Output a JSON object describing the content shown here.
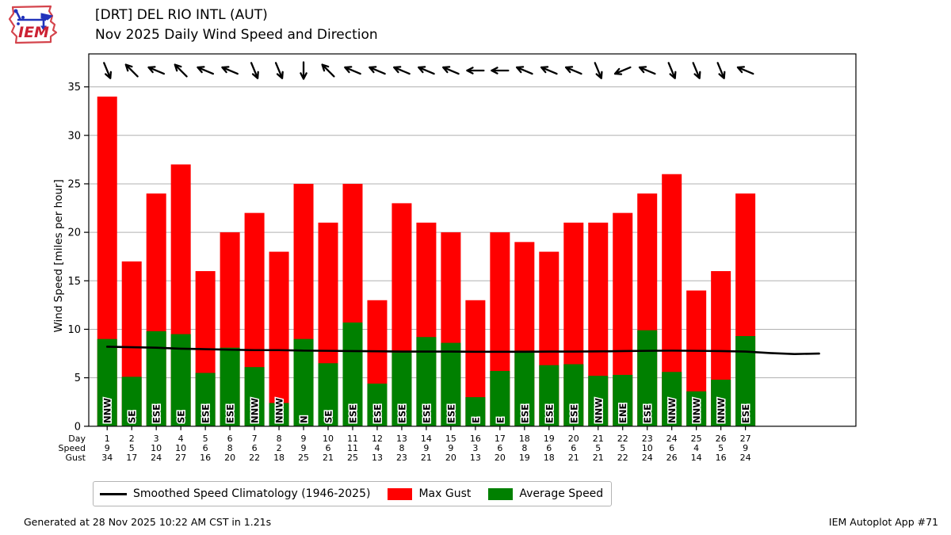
{
  "header": {
    "title": "[DRT] DEL RIO INTL (AUT)",
    "subtitle": "Nov 2025 Daily Wind Speed and Direction",
    "logo_text": "IEM"
  },
  "footer": {
    "generated": "Generated at 28 Nov 2025 10:22 AM CST in 1.21s",
    "app": "IEM Autoplot App #71"
  },
  "chart_data": {
    "type": "bar",
    "title": "[DRT] DEL RIO INTL (AUT)",
    "subtitle": "Nov 2025 Daily Wind Speed and Direction",
    "ylabel": "Wind Speed [miles per hour]",
    "ylim": [
      0,
      38.4
    ],
    "yticks": [
      0,
      5,
      10,
      15,
      20,
      25,
      30,
      35
    ],
    "grid": "horizontal",
    "categories": [
      1,
      2,
      3,
      4,
      5,
      6,
      7,
      8,
      9,
      10,
      11,
      12,
      13,
      14,
      15,
      16,
      17,
      18,
      19,
      20,
      21,
      22,
      23,
      24,
      25,
      26,
      27
    ],
    "series": [
      {
        "name": "Max Gust",
        "color": "#ff0000",
        "values": [
          34,
          17,
          24,
          27,
          16,
          20,
          22,
          18,
          25,
          21,
          25,
          13,
          23,
          21,
          20,
          13,
          20,
          19,
          18,
          21,
          21,
          22,
          24,
          26,
          14,
          16,
          24
        ]
      },
      {
        "name": "Average Speed",
        "color": "#008000",
        "values": [
          9.0,
          5.1,
          9.8,
          9.5,
          5.5,
          8.1,
          6.1,
          2.4,
          9.0,
          6.5,
          10.7,
          4.4,
          7.6,
          9.2,
          8.6,
          3.0,
          5.7,
          7.8,
          6.3,
          6.4,
          5.2,
          5.3,
          9.9,
          5.6,
          3.6,
          4.8,
          9.3
        ]
      },
      {
        "name": "Smoothed Speed Climatology (1946-2025)",
        "color": "#000000",
        "type": "line",
        "x": [
          1,
          2,
          3,
          4,
          5,
          6,
          7,
          8,
          9,
          10,
          11,
          12,
          13,
          14,
          15,
          16,
          17,
          18,
          19,
          20,
          21,
          22,
          23,
          24,
          25,
          26,
          27,
          28,
          29,
          30
        ],
        "values": [
          8.2,
          8.15,
          8.1,
          8.0,
          7.95,
          7.9,
          7.85,
          7.85,
          7.8,
          7.78,
          7.75,
          7.73,
          7.7,
          7.7,
          7.7,
          7.68,
          7.68,
          7.68,
          7.7,
          7.7,
          7.72,
          7.75,
          7.78,
          7.8,
          7.78,
          7.75,
          7.7,
          7.55,
          7.45,
          7.5
        ]
      }
    ],
    "wind_directions": [
      "NNW",
      "SE",
      "ESE",
      "SE",
      "ESE",
      "ESE",
      "NNW",
      "NNW",
      "N",
      "SE",
      "ESE",
      "ESE",
      "ESE",
      "ESE",
      "ESE",
      "E",
      "E",
      "ESE",
      "ESE",
      "ESE",
      "NNW",
      "ENE",
      "ESE",
      "NNW",
      "NNW",
      "NNW",
      "ESE"
    ],
    "table": {
      "row_labels": [
        "Day",
        "Speed",
        "Gust"
      ],
      "day": [
        1,
        2,
        3,
        4,
        5,
        6,
        7,
        8,
        9,
        10,
        11,
        12,
        13,
        14,
        15,
        16,
        17,
        18,
        19,
        20,
        21,
        22,
        23,
        24,
        25,
        26,
        27
      ],
      "speed": [
        9,
        5,
        10,
        10,
        6,
        8,
        6,
        2,
        9,
        6,
        11,
        4,
        8,
        9,
        9,
        3,
        6,
        8,
        6,
        6,
        5,
        5,
        10,
        6,
        4,
        5,
        9
      ],
      "gust": [
        34,
        17,
        24,
        27,
        16,
        20,
        22,
        18,
        25,
        21,
        25,
        13,
        23,
        21,
        20,
        13,
        20,
        19,
        18,
        21,
        21,
        22,
        24,
        26,
        14,
        16,
        24
      ]
    },
    "legend": [
      {
        "label": "Smoothed Speed Climatology (1946-2025)",
        "swatch": "line",
        "color": "#000000"
      },
      {
        "label": "Max Gust",
        "swatch": "rect",
        "color": "#ff0000"
      },
      {
        "label": "Average Speed",
        "swatch": "rect",
        "color": "#008000"
      }
    ],
    "colors": {
      "gust": "#ff0000",
      "avg": "#008000",
      "climatology": "#000000",
      "grid": "#b0b0b0"
    }
  }
}
